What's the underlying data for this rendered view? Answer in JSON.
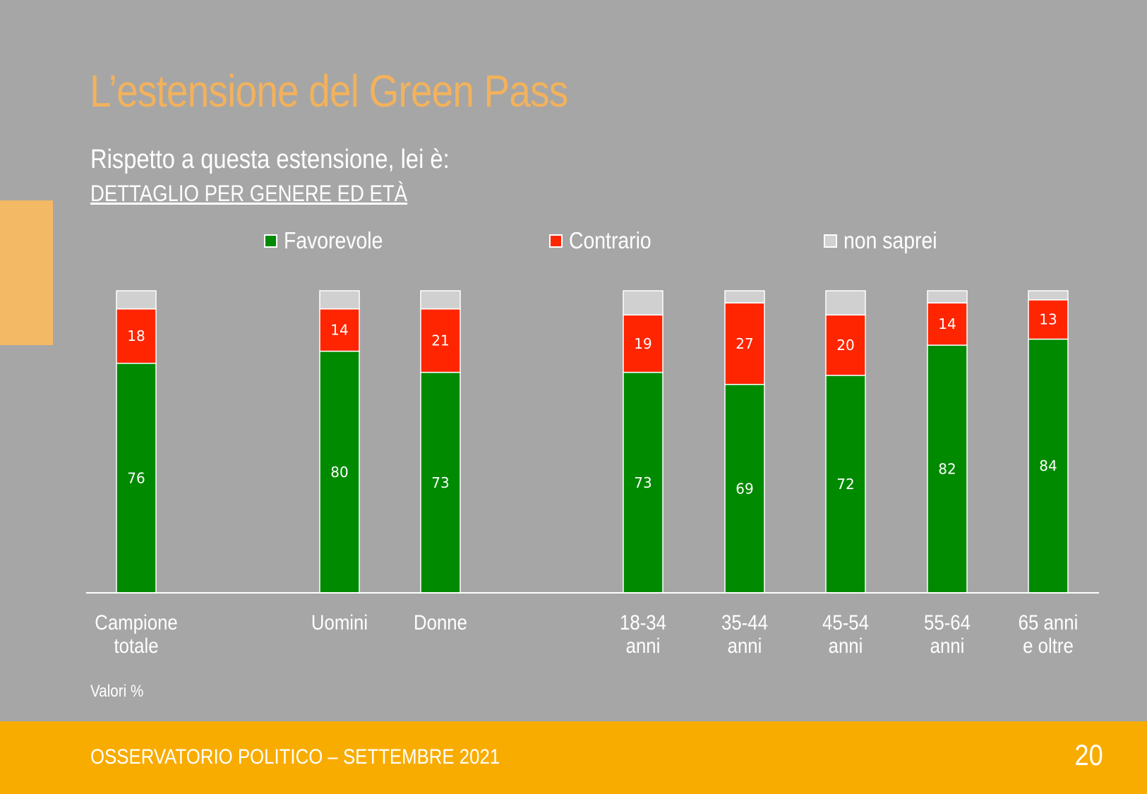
{
  "slide": {
    "title": "L’estensione del Green Pass",
    "question": "Rispetto a questa estensione, lei è:",
    "detail": "DETTAGLIO PER GENERE ED ETÀ",
    "note": "Valori %",
    "footer_text": "OSSERVATORIO POLITICO – SETTEMBRE 2021",
    "page_number": "20"
  },
  "colors": {
    "background": "#a6a6a6",
    "title": "#f2b25c",
    "accent_bar": "#f4b964",
    "footer": "#f8ac00",
    "favorevole": "#008a00",
    "contrario": "#ff2500",
    "non_saprei": "#d0d0d0"
  },
  "chart_data": {
    "type": "bar",
    "stacked": true,
    "categories": [
      [
        "Campione",
        "totale"
      ],
      [
        "Uomini"
      ],
      [
        "Donne"
      ],
      [
        "18-34",
        "anni"
      ],
      [
        "35-44",
        "anni"
      ],
      [
        "45-54",
        "anni"
      ],
      [
        "55-64",
        "anni"
      ],
      [
        "65 anni",
        "e oltre"
      ]
    ],
    "series": [
      {
        "name": "Favorevole",
        "values": [
          76,
          80,
          73,
          73,
          69,
          72,
          82,
          84
        ],
        "labeled": true
      },
      {
        "name": "Contrario",
        "values": [
          18,
          14,
          21,
          19,
          27,
          20,
          14,
          13
        ],
        "labeled": true
      },
      {
        "name": "non saprei",
        "values": [
          6,
          6,
          6,
          8,
          4,
          8,
          4,
          3
        ],
        "labeled": false
      }
    ],
    "ylim": [
      0,
      100
    ],
    "grid": false,
    "legend_position": "top"
  }
}
